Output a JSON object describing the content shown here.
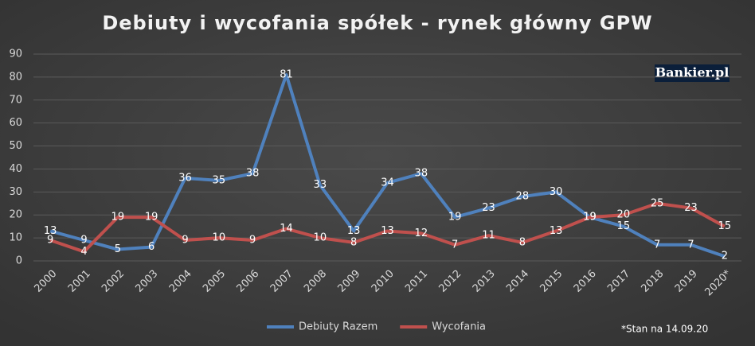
{
  "chart_data": {
    "type": "line",
    "title": "Debiuty i wycofania spółek - rynek główny GPW",
    "logo": "Bankier.pl",
    "note": "*Stan na 14.09.20",
    "categories": [
      "2000",
      "2001",
      "2002",
      "2003",
      "2004",
      "2005",
      "2006",
      "2007",
      "2008",
      "2009",
      "2010",
      "2011",
      "2012",
      "2013",
      "2014",
      "2015",
      "2016",
      "2017",
      "2018",
      "2019",
      "2020*"
    ],
    "series": [
      {
        "name": "Debiuty Razem",
        "color": "#4f81bd",
        "values": [
          13,
          9,
          5,
          6,
          36,
          35,
          38,
          81,
          33,
          13,
          34,
          38,
          19,
          23,
          28,
          30,
          19,
          15,
          7,
          7,
          2
        ]
      },
      {
        "name": "Wycofania",
        "color": "#c0504d",
        "values": [
          9,
          4,
          19,
          19,
          9,
          10,
          9,
          14,
          10,
          8,
          13,
          12,
          7,
          11,
          8,
          13,
          19,
          20,
          25,
          23,
          15
        ]
      }
    ],
    "ylim": [
      0,
      90
    ],
    "yticks": [
      0,
      10,
      20,
      30,
      40,
      50,
      60,
      70,
      80,
      90
    ],
    "grid": true
  }
}
